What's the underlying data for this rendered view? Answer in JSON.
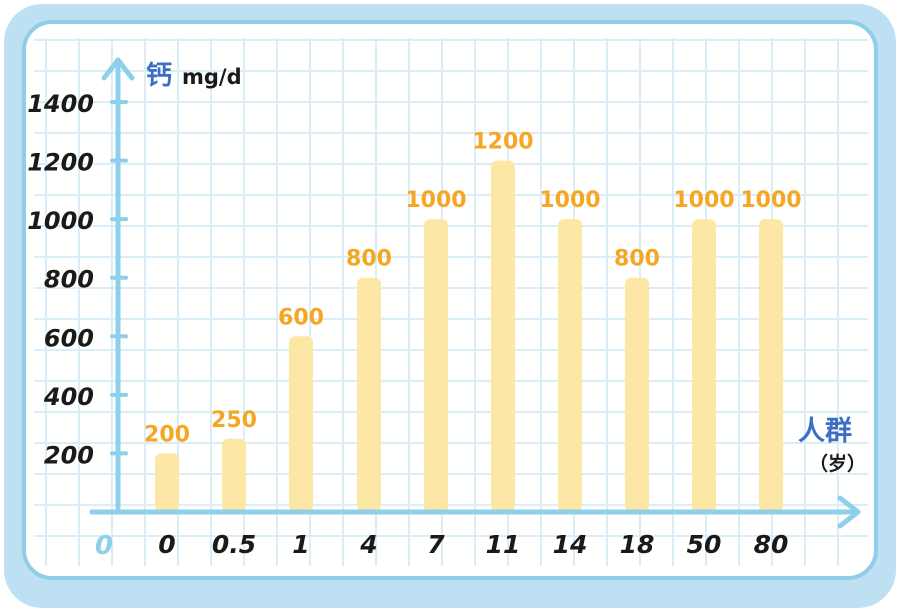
{
  "colors": {
    "frame_outer": "#bde1f2",
    "frame_border": "#8fcdea",
    "grid": "#dbeef8",
    "axis": "#8ecfe9",
    "bar": "#fde7a4",
    "value_label": "#f5a623",
    "axis_title": "#3c6fc4",
    "tick_text": "#1a1a1a",
    "origin_text": "#8ecfe9"
  },
  "chart_data": {
    "type": "bar",
    "title": "",
    "ylabel": "钙",
    "yunit": "mg/d",
    "xlabel": "人群",
    "xunit": "（岁）",
    "origin_label": "0",
    "categories": [
      "0",
      "0.5",
      "1",
      "4",
      "7",
      "11",
      "14",
      "18",
      "50",
      "80"
    ],
    "values": [
      200,
      250,
      600,
      800,
      1000,
      1200,
      1000,
      800,
      1000,
      1000
    ],
    "value_labels": [
      "200",
      "250",
      "600",
      "800",
      "1000",
      "1200",
      "1000",
      "800",
      "1000",
      "1000"
    ],
    "yticks": [
      200,
      400,
      600,
      800,
      1000,
      1200,
      1400
    ],
    "ytick_labels": [
      "200",
      "400",
      "600",
      "800",
      "1000",
      "1200",
      "1400"
    ],
    "ylim": [
      0,
      1400
    ],
    "grid": true,
    "legend": "none"
  }
}
